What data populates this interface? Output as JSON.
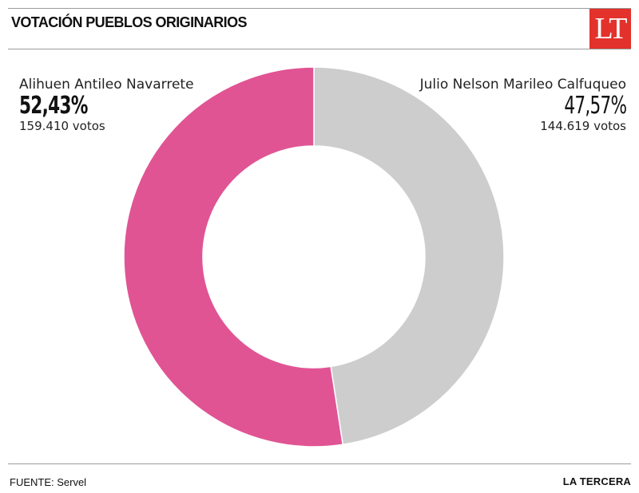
{
  "header": {
    "title": "VOTACIÓN PUEBLOS ORIGINARIOS",
    "logo_text": "LT",
    "logo_color": "#e2322b"
  },
  "chart_data": {
    "type": "pie",
    "donut": true,
    "title": "VOTACIÓN PUEBLOS ORIGINARIOS",
    "series": [
      {
        "name": "Julio Nelson Marileo Calfuqueo",
        "percent_label": "47,57%",
        "votes_label": "144.619 votos",
        "percent": 47.57,
        "votes": 144619,
        "color": "#cdcdcd"
      },
      {
        "name": "Alihuen Antileo Navarrete",
        "percent_label": "52,43%",
        "votes_label": "159.410 votos",
        "percent": 52.43,
        "votes": 159410,
        "color": "#e05494"
      }
    ],
    "legend": "inline labels: top-left and top-right"
  },
  "footer": {
    "source": "FUENTE: Servel",
    "brand": "LA TERCERA"
  }
}
